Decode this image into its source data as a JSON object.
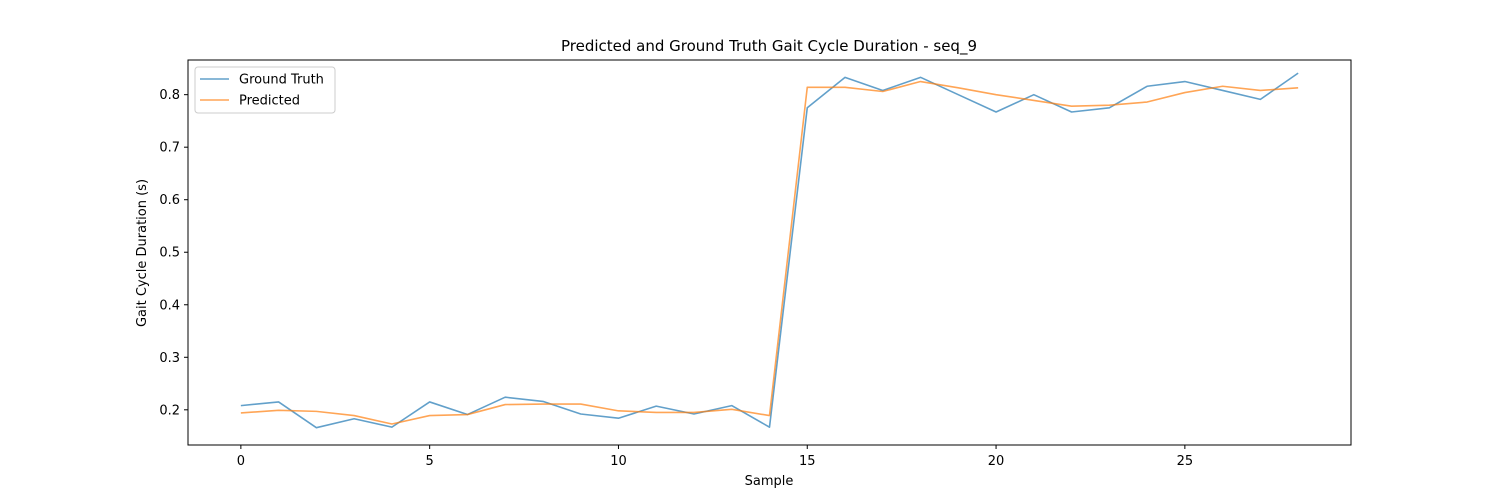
{
  "chart_data": {
    "type": "line",
    "title": "Predicted and Ground Truth Gait Cycle Duration - seq_9",
    "xlabel": "Sample",
    "ylabel": "Gait Cycle Duration (s)",
    "xlim": [
      -1.4,
      29.4
    ],
    "ylim": [
      0.133,
      0.866
    ],
    "xticks": [
      0,
      5,
      10,
      15,
      20,
      25
    ],
    "yticks": [
      0.2,
      0.3,
      0.4,
      0.5,
      0.6,
      0.7,
      0.8
    ],
    "grid": false,
    "legend_position": "top-left",
    "x": [
      0,
      1,
      2,
      3,
      4,
      5,
      6,
      7,
      8,
      9,
      10,
      11,
      12,
      13,
      14,
      15,
      16,
      17,
      18,
      19,
      20,
      21,
      22,
      23,
      24,
      25,
      26,
      27,
      28
    ],
    "series": [
      {
        "name": "Ground Truth",
        "color": "#1f77b4",
        "values": [
          0.208,
          0.215,
          0.166,
          0.183,
          0.167,
          0.215,
          0.191,
          0.224,
          0.216,
          0.192,
          0.184,
          0.207,
          0.192,
          0.208,
          0.167,
          0.775,
          0.833,
          0.808,
          0.833,
          0.8,
          0.767,
          0.8,
          0.767,
          0.775,
          0.816,
          0.825,
          0.808,
          0.791,
          0.841
        ]
      },
      {
        "name": "Predicted",
        "color": "#ff7f0e",
        "values": [
          0.194,
          0.199,
          0.197,
          0.189,
          0.173,
          0.189,
          0.191,
          0.21,
          0.211,
          0.211,
          0.198,
          0.195,
          0.195,
          0.201,
          0.189,
          0.814,
          0.814,
          0.806,
          0.825,
          0.813,
          0.8,
          0.789,
          0.778,
          0.78,
          0.786,
          0.804,
          0.816,
          0.808,
          0.813
        ]
      }
    ]
  }
}
